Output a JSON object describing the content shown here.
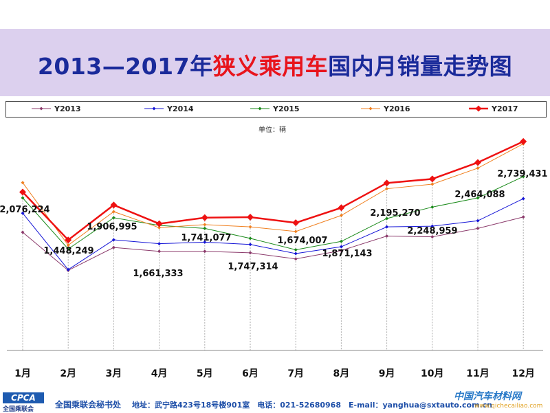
{
  "title": {
    "part1": "2013—2017年",
    "part2": "狭义乘用车",
    "part3": "国内月销量走势图"
  },
  "unit": "单位：辆",
  "footer": {
    "logo": "CPCA",
    "logo_sub": "全国乘联会",
    "office": "全国乘联会秘书处",
    "address": "地址：武宁路423号18号楼901室　电话：021-52680968　E-mail：yanghua@sxtauto.com.cn",
    "watermark": "中国汽车材料网",
    "watermark_url": "www.qichecailiao.com"
  },
  "colors": {
    "Y2013": "#8b3a6b",
    "Y2014": "#1414d6",
    "Y2015": "#1a8a1a",
    "Y2016": "#f08020",
    "Y2017": "#ee1111"
  },
  "chart_data": {
    "type": "line",
    "title": "2013—2017年狭义乘用车国内月销量走势图",
    "ylabel": "单位：辆",
    "categories": [
      "1月",
      "2月",
      "3月",
      "4月",
      "5月",
      "6月",
      "7月",
      "8月",
      "9月",
      "10月",
      "11月",
      "12月"
    ],
    "ylim": [
      0,
      3000000
    ],
    "grid": false,
    "legend": "top",
    "series": [
      {
        "name": "Y2013",
        "values": [
          1550000,
          1050000,
          1350000,
          1300000,
          1300000,
          1280000,
          1200000,
          1310000,
          1500000,
          1490000,
          1600000,
          1750000
        ]
      },
      {
        "name": "Y2014",
        "values": [
          1800000,
          1060000,
          1450000,
          1400000,
          1420000,
          1390000,
          1270000,
          1360000,
          1620000,
          1630000,
          1700000,
          1990000
        ]
      },
      {
        "name": "Y2015",
        "values": [
          2000000,
          1330000,
          1740000,
          1640000,
          1600000,
          1470000,
          1320000,
          1430000,
          1730000,
          1880000,
          2000000,
          2280000
        ]
      },
      {
        "name": "Y2016",
        "values": [
          2200000,
          1380000,
          1820000,
          1610000,
          1650000,
          1620000,
          1560000,
          1770000,
          2120000,
          2180000,
          2390000,
          2710000
        ]
      },
      {
        "name": "Y2017",
        "values": [
          2076224,
          1448249,
          1906995,
          1661333,
          1741077,
          1747314,
          1674007,
          1871143,
          2195270,
          2248959,
          2464088,
          2739431
        ]
      }
    ],
    "data_labels": [
      "2,076,224",
      "1,448,249",
      "1,906,995",
      "1,661,333",
      "1,741,077",
      "1,747,314",
      "1,674,007",
      "1,871,143",
      "2,195,270",
      "2,248,959",
      "2,464,088",
      "2,739,431"
    ]
  }
}
